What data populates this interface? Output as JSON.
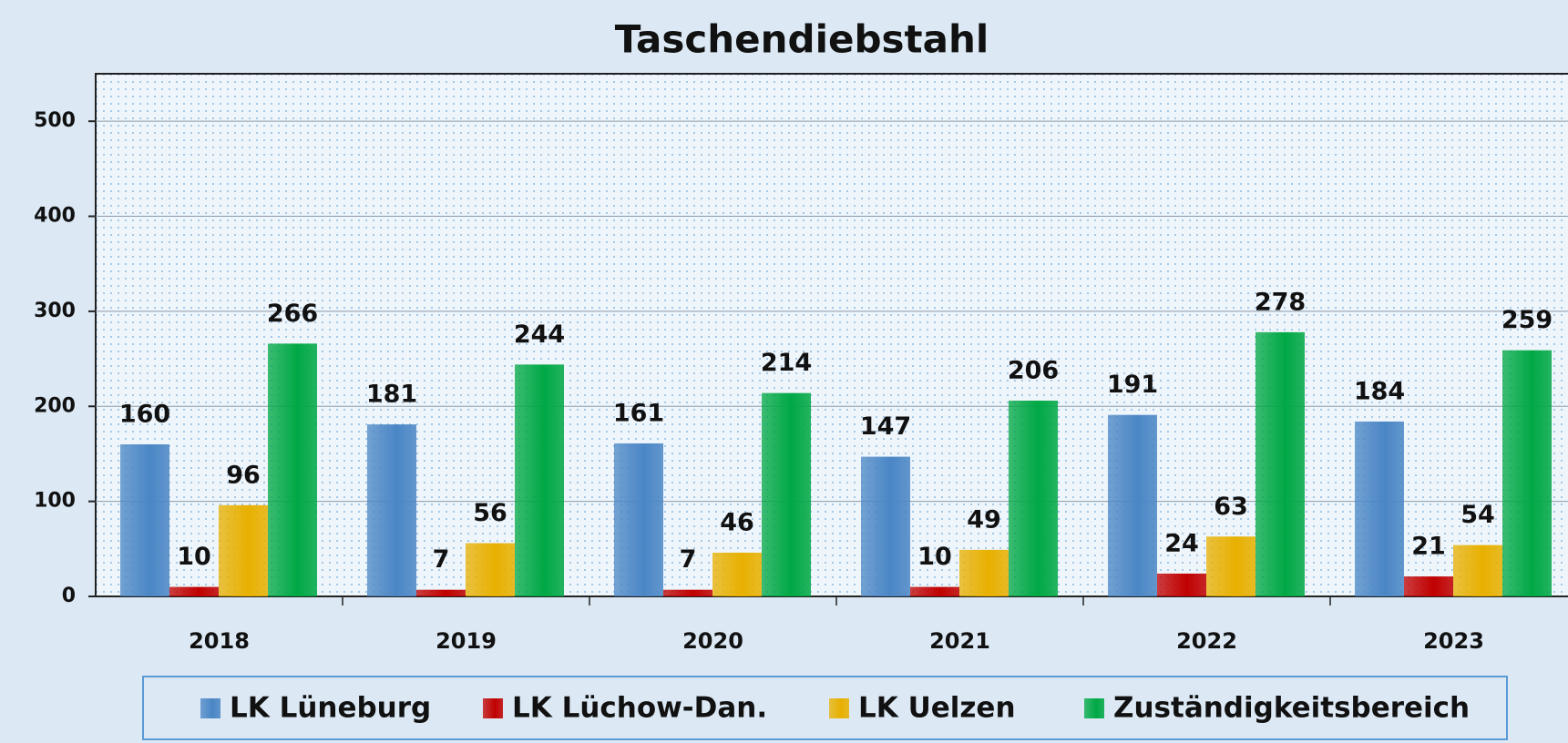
{
  "chart_data": {
    "type": "bar",
    "title": "Taschendiebstahl",
    "categories": [
      "2018",
      "2019",
      "2020",
      "2021",
      "2022",
      "2023"
    ],
    "series": [
      {
        "name": "LK Lüneburg",
        "color": "#4a86c5",
        "values": [
          160,
          181,
          161,
          147,
          191,
          184
        ]
      },
      {
        "name": "LK Lüchow-Dan.",
        "color": "#c00000",
        "values": [
          10,
          7,
          7,
          10,
          24,
          21
        ]
      },
      {
        "name": "LK Uelzen",
        "color": "#e8b000",
        "values": [
          96,
          56,
          46,
          49,
          63,
          54
        ]
      },
      {
        "name": "Zuständigkeitsbereich",
        "color": "#00a845",
        "values": [
          266,
          244,
          214,
          206,
          278,
          259
        ]
      }
    ],
    "ylim": [
      0,
      550
    ],
    "yticks": [
      0,
      100,
      200,
      300,
      400,
      500
    ],
    "grid": true,
    "legend": "bottom"
  }
}
